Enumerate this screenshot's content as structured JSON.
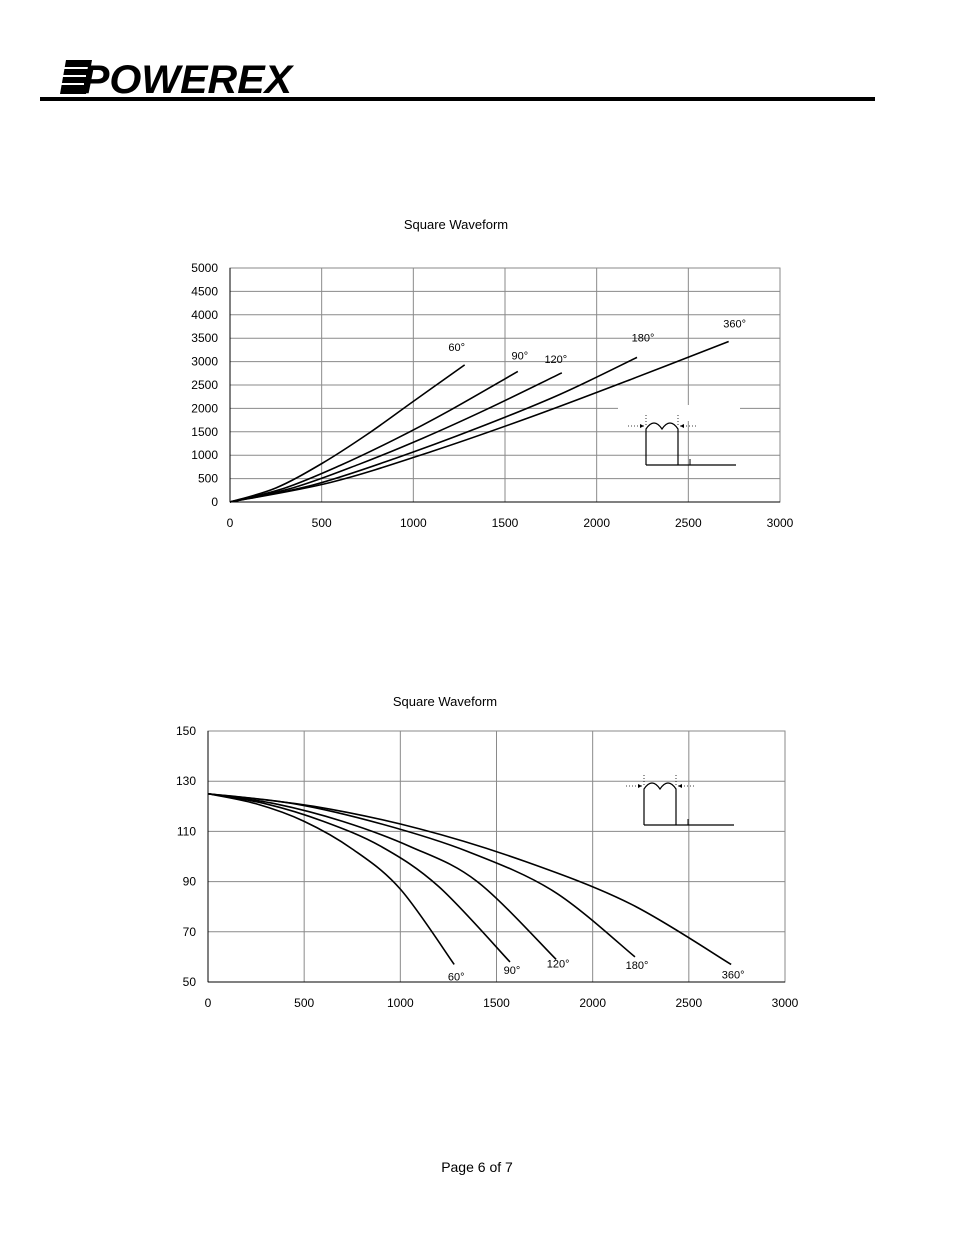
{
  "brand": {
    "logo_text": "POWEREX"
  },
  "footer": {
    "page_label": "Page 6 of 7"
  },
  "chart_data": [
    {
      "type": "line",
      "title": "Square Waveform",
      "xlabel": "",
      "ylabel": "",
      "xlim": [
        0,
        3000
      ],
      "ylim": [
        0,
        5000
      ],
      "xticks": [
        0,
        500,
        1000,
        1500,
        2000,
        2500,
        3000
      ],
      "yticks": [
        0,
        500,
        1000,
        1500,
        2000,
        2500,
        3000,
        3500,
        4000,
        4500,
        5000
      ],
      "grid": true,
      "series": [
        {
          "name": "60°",
          "x": [
            0,
            250,
            500,
            750,
            1000,
            1280
          ],
          "y": [
            0,
            300,
            820,
            1450,
            2150,
            2930
          ]
        },
        {
          "name": "90°",
          "x": [
            0,
            300,
            600,
            900,
            1200,
            1570
          ],
          "y": [
            0,
            300,
            780,
            1340,
            1960,
            2790
          ]
        },
        {
          "name": "120°",
          "x": [
            0,
            350,
            700,
            1050,
            1400,
            1810
          ],
          "y": [
            0,
            310,
            800,
            1360,
            1980,
            2760
          ]
        },
        {
          "name": "180°",
          "x": [
            0,
            450,
            900,
            1350,
            1800,
            2220
          ],
          "y": [
            0,
            360,
            930,
            1580,
            2300,
            3090
          ]
        },
        {
          "name": "360°",
          "x": [
            0,
            550,
            1100,
            1650,
            2200,
            2720
          ],
          "y": [
            0,
            420,
            1080,
            1830,
            2640,
            3430
          ]
        }
      ],
      "inset": "square-waveform-icon"
    },
    {
      "type": "line",
      "title": "Square Waveform",
      "xlabel": "",
      "ylabel": "",
      "xlim": [
        0,
        3000
      ],
      "ylim": [
        50,
        150
      ],
      "xticks": [
        0,
        500,
        1000,
        1500,
        2000,
        2500,
        3000
      ],
      "yticks": [
        50,
        70,
        90,
        110,
        130,
        150
      ],
      "grid": true,
      "series": [
        {
          "name": "60°",
          "x": [
            0,
            250,
            500,
            750,
            1000,
            1280
          ],
          "y": [
            125,
            121,
            114,
            103,
            87,
            57
          ]
        },
        {
          "name": "90°",
          "x": [
            0,
            300,
            600,
            900,
            1200,
            1570
          ],
          "y": [
            125,
            121,
            114,
            104,
            88,
            58
          ]
        },
        {
          "name": "120°",
          "x": [
            0,
            350,
            700,
            1050,
            1400,
            1810
          ],
          "y": [
            125,
            121,
            114,
            104,
            90,
            59
          ]
        },
        {
          "name": "180°",
          "x": [
            0,
            450,
            900,
            1350,
            1800,
            2220
          ],
          "y": [
            125,
            121,
            113,
            102,
            86,
            60
          ]
        },
        {
          "name": "360°",
          "x": [
            0,
            550,
            1100,
            1650,
            2200,
            2720
          ],
          "y": [
            125,
            120,
            111,
            98,
            81,
            57
          ]
        }
      ],
      "inset": "square-waveform-icon"
    }
  ]
}
